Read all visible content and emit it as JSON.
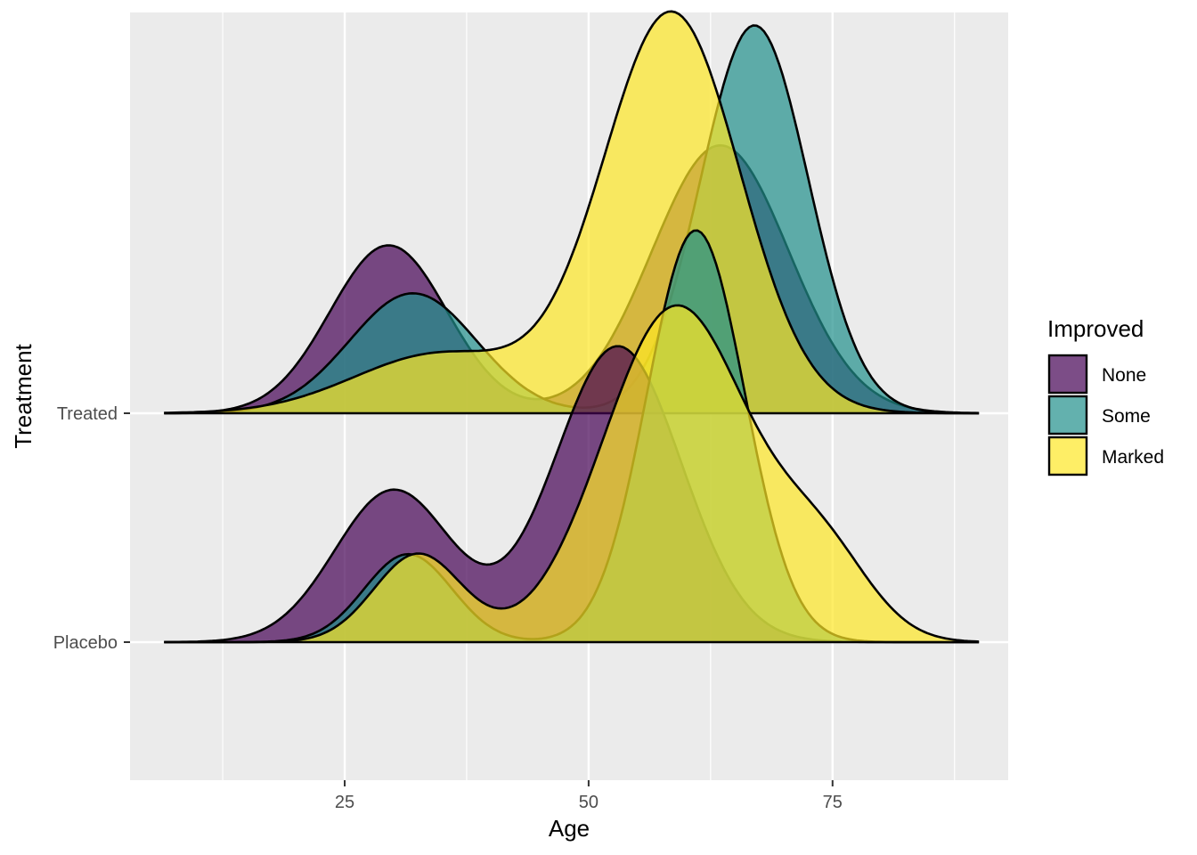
{
  "chart_data": {
    "type": "ridgeline",
    "xlabel": "Age",
    "ylabel": "Treatment",
    "xlim": [
      3,
      93
    ],
    "x_ticks": [
      25,
      50,
      75
    ],
    "x_minor_ticks": [
      12.5,
      37.5,
      62.5,
      87.5
    ],
    "categories": [
      "Placebo",
      "Treated"
    ],
    "legend": {
      "title": "Improved",
      "position": "right"
    },
    "grid": true,
    "series_colors": {
      "None": "#440154",
      "Some": "#21908C",
      "Marked": "#FDE725"
    },
    "densities": [
      {
        "group": "Treated",
        "improved": "None",
        "components": [
          {
            "mean": 29.5,
            "sd": 6.0,
            "height": 0.42
          },
          {
            "mean": 63.5,
            "sd": 7.0,
            "height": 0.67
          }
        ]
      },
      {
        "group": "Treated",
        "improved": "Some",
        "components": [
          {
            "mean": 32.0,
            "sd": 6.5,
            "height": 0.3
          },
          {
            "mean": 67.0,
            "sd": 5.5,
            "height": 0.97
          }
        ]
      },
      {
        "group": "Treated",
        "improved": "Marked",
        "components": [
          {
            "mean": 35.0,
            "sd": 9.0,
            "height": 0.15
          },
          {
            "mean": 58.5,
            "sd": 7.0,
            "height": 1.0
          }
        ]
      },
      {
        "group": "Placebo",
        "improved": "None",
        "components": [
          {
            "mean": 30.0,
            "sd": 6.0,
            "height": 0.38
          },
          {
            "mean": 53.0,
            "sd": 6.5,
            "height": 0.74
          }
        ]
      },
      {
        "group": "Placebo",
        "improved": "Some",
        "components": [
          {
            "mean": 31.5,
            "sd": 4.5,
            "height": 0.22
          },
          {
            "mean": 61.0,
            "sd": 5.0,
            "height": 1.03
          }
        ]
      },
      {
        "group": "Placebo",
        "improved": "Marked",
        "components": [
          {
            "mean": 32.5,
            "sd": 4.5,
            "height": 0.22
          },
          {
            "mean": 59.0,
            "sd": 7.5,
            "height": 0.84
          },
          {
            "mean": 74.0,
            "sd": 5.0,
            "height": 0.2
          }
        ]
      }
    ]
  }
}
